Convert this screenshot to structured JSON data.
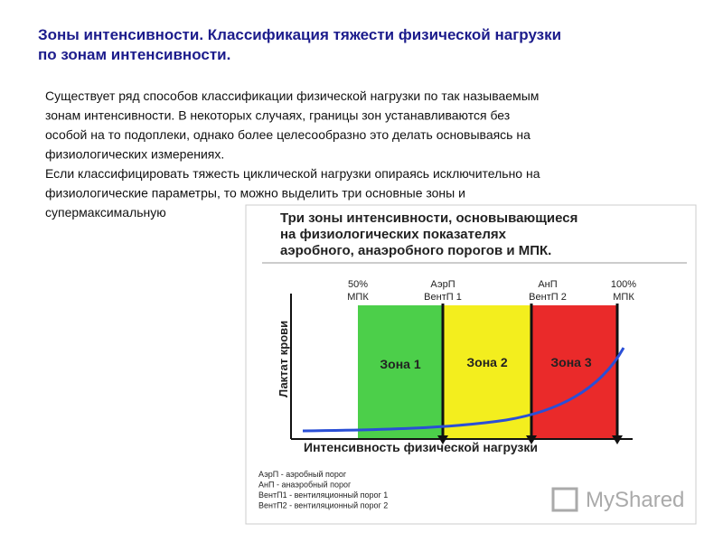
{
  "header": {
    "title_lines": [
      "Зоны интенсивности. Классификация тяжести физической нагрузки",
      "по зонам интенсивности."
    ]
  },
  "body": {
    "lines": [
      "Существует ряд способов классификации физической нагрузки по так называемым",
      "зонам интенсивности. В некоторых случаях, границы зон устанавливаются без",
      "особой на то подоплеки, однако более целесообразно это делать основываясь на",
      "физиологических измерениях.",
      "Если классифицировать тяжесть циклической нагрузки опираясь исключительно на",
      "физиологические параметры, то можно выделить три основные зоны и",
      "супермаксимальную"
    ]
  },
  "figure": {
    "title_lines": [
      "Три зоны интенсивности, основывающиеся",
      "на физиологических показателях",
      "аэробного, анаэробного порогов и МПК."
    ],
    "markers": [
      {
        "lines": [
          "50%",
          "МПК"
        ]
      },
      {
        "lines": [
          "АэрП",
          "ВентП 1"
        ]
      },
      {
        "lines": [
          "АнП",
          "ВентП 2"
        ]
      },
      {
        "lines": [
          "100%",
          "МПК"
        ]
      }
    ],
    "zones": [
      "Зона 1",
      "Зона 2",
      "Зона 3"
    ],
    "y_label": "Лактат крови",
    "x_label": "Интенсивность физической нагрузки",
    "legend": [
      "АэрП - аэробный порог",
      "АнП - анаэробный порог",
      "ВентП1 - вентиляционный порог 1",
      "ВентП2 - вентиляционный порог 2"
    ]
  },
  "watermark": "MyShared"
}
